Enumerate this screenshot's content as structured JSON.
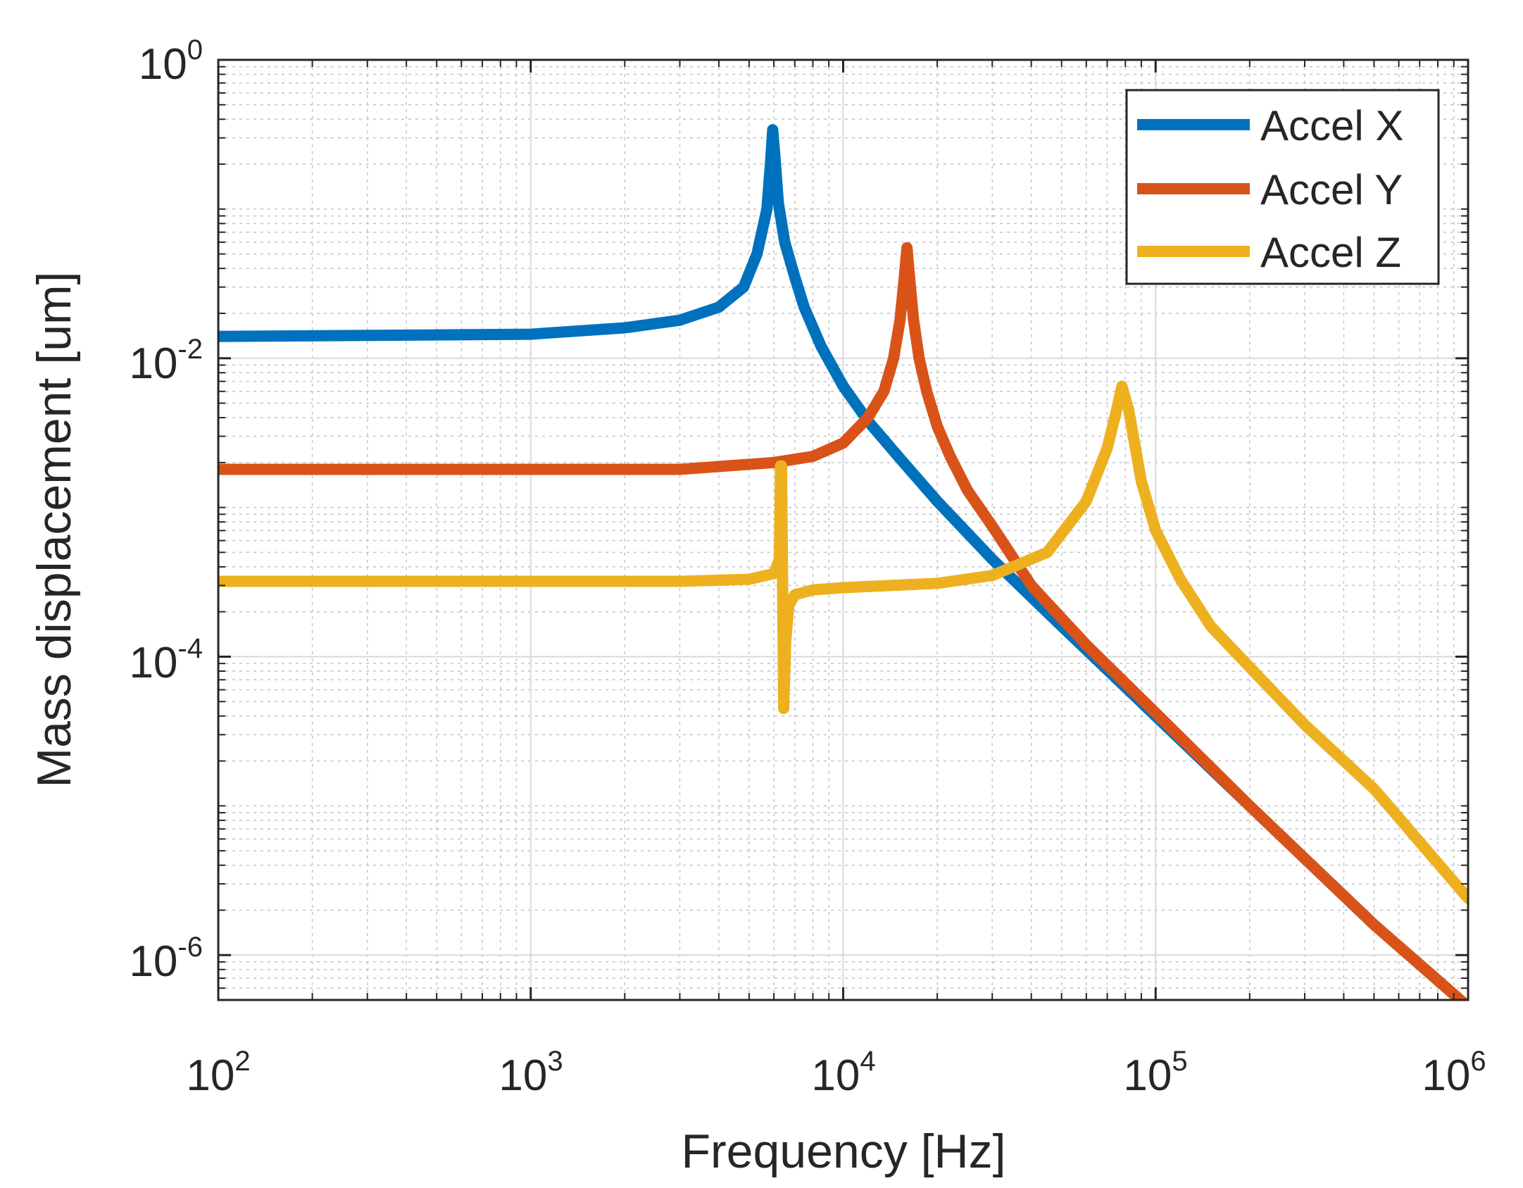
{
  "chart_data": {
    "type": "line",
    "xscale": "log",
    "yscale": "log",
    "xlabel": "Frequency [Hz]",
    "ylabel": "Mass displacement [um]",
    "xlim": [
      100,
      1000000
    ],
    "ylim": [
      5e-07,
      1
    ],
    "grid": true,
    "legend_position": "top-right",
    "x_ticks": [
      {
        "value": 100,
        "base": "10",
        "exp": "2"
      },
      {
        "value": 1000,
        "base": "10",
        "exp": "3"
      },
      {
        "value": 10000,
        "base": "10",
        "exp": "4"
      },
      {
        "value": 100000,
        "base": "10",
        "exp": "5"
      },
      {
        "value": 1000000,
        "base": "10",
        "exp": "6"
      }
    ],
    "y_ticks": [
      {
        "value": 1,
        "base": "10",
        "exp": "0"
      },
      {
        "value": 0.01,
        "base": "10",
        "exp": "-2"
      },
      {
        "value": 0.0001,
        "base": "10",
        "exp": "-4"
      },
      {
        "value": 1e-06,
        "base": "10",
        "exp": "-6"
      }
    ],
    "series": [
      {
        "name": "Accel X",
        "color": "#0072BD",
        "x": [
          100,
          1000,
          2000,
          3000,
          4000,
          4800,
          5300,
          5700,
          5850,
          5950,
          6050,
          6200,
          6500,
          7000,
          7500,
          8500,
          10000,
          12000,
          15000,
          20000,
          30000,
          50000,
          100000,
          200000,
          500000,
          1000000
        ],
        "y": [
          0.014,
          0.0145,
          0.016,
          0.018,
          0.022,
          0.03,
          0.05,
          0.1,
          0.2,
          0.34,
          0.22,
          0.11,
          0.06,
          0.035,
          0.022,
          0.012,
          0.0065,
          0.0038,
          0.0022,
          0.0011,
          0.00045,
          0.00016,
          4e-05,
          1e-05,
          1.6e-06,
          4.5e-07
        ]
      },
      {
        "name": "Accel Y",
        "color": "#D95319",
        "x": [
          100,
          1000,
          3000,
          6000,
          8000,
          10000,
          12000,
          13500,
          14500,
          15200,
          15700,
          16000,
          16300,
          16800,
          17500,
          18500,
          20000,
          22000,
          25000,
          30000,
          40000,
          60000,
          100000,
          200000,
          500000,
          1000000
        ],
        "y": [
          0.0018,
          0.0018,
          0.0018,
          0.002,
          0.0022,
          0.0027,
          0.004,
          0.006,
          0.01,
          0.018,
          0.035,
          0.055,
          0.035,
          0.018,
          0.01,
          0.006,
          0.0035,
          0.0022,
          0.0013,
          0.00075,
          0.0003,
          0.00012,
          4.2e-05,
          1e-05,
          1.6e-06,
          4.5e-07
        ]
      },
      {
        "name": "Accel Z",
        "color": "#EDB120",
        "x": [
          100,
          1000,
          3000,
          5000,
          6000,
          6250,
          6300,
          6350,
          6450,
          6550,
          6700,
          7000,
          8000,
          10000,
          20000,
          30000,
          45000,
          60000,
          70000,
          75000,
          78000,
          82000,
          90000,
          100000,
          120000,
          150000,
          200000,
          300000,
          500000,
          1000000
        ],
        "y": [
          0.00032,
          0.00032,
          0.00032,
          0.00033,
          0.00036,
          0.00045,
          0.0019,
          0.0019,
          4.5e-05,
          0.00013,
          0.00022,
          0.00026,
          0.00028,
          0.00029,
          0.00031,
          0.00035,
          0.0005,
          0.0011,
          0.0025,
          0.0045,
          0.0065,
          0.0045,
          0.0015,
          0.0007,
          0.00033,
          0.00016,
          8.5e-05,
          3.5e-05,
          1.3e-05,
          2.4e-06
        ]
      }
    ]
  }
}
